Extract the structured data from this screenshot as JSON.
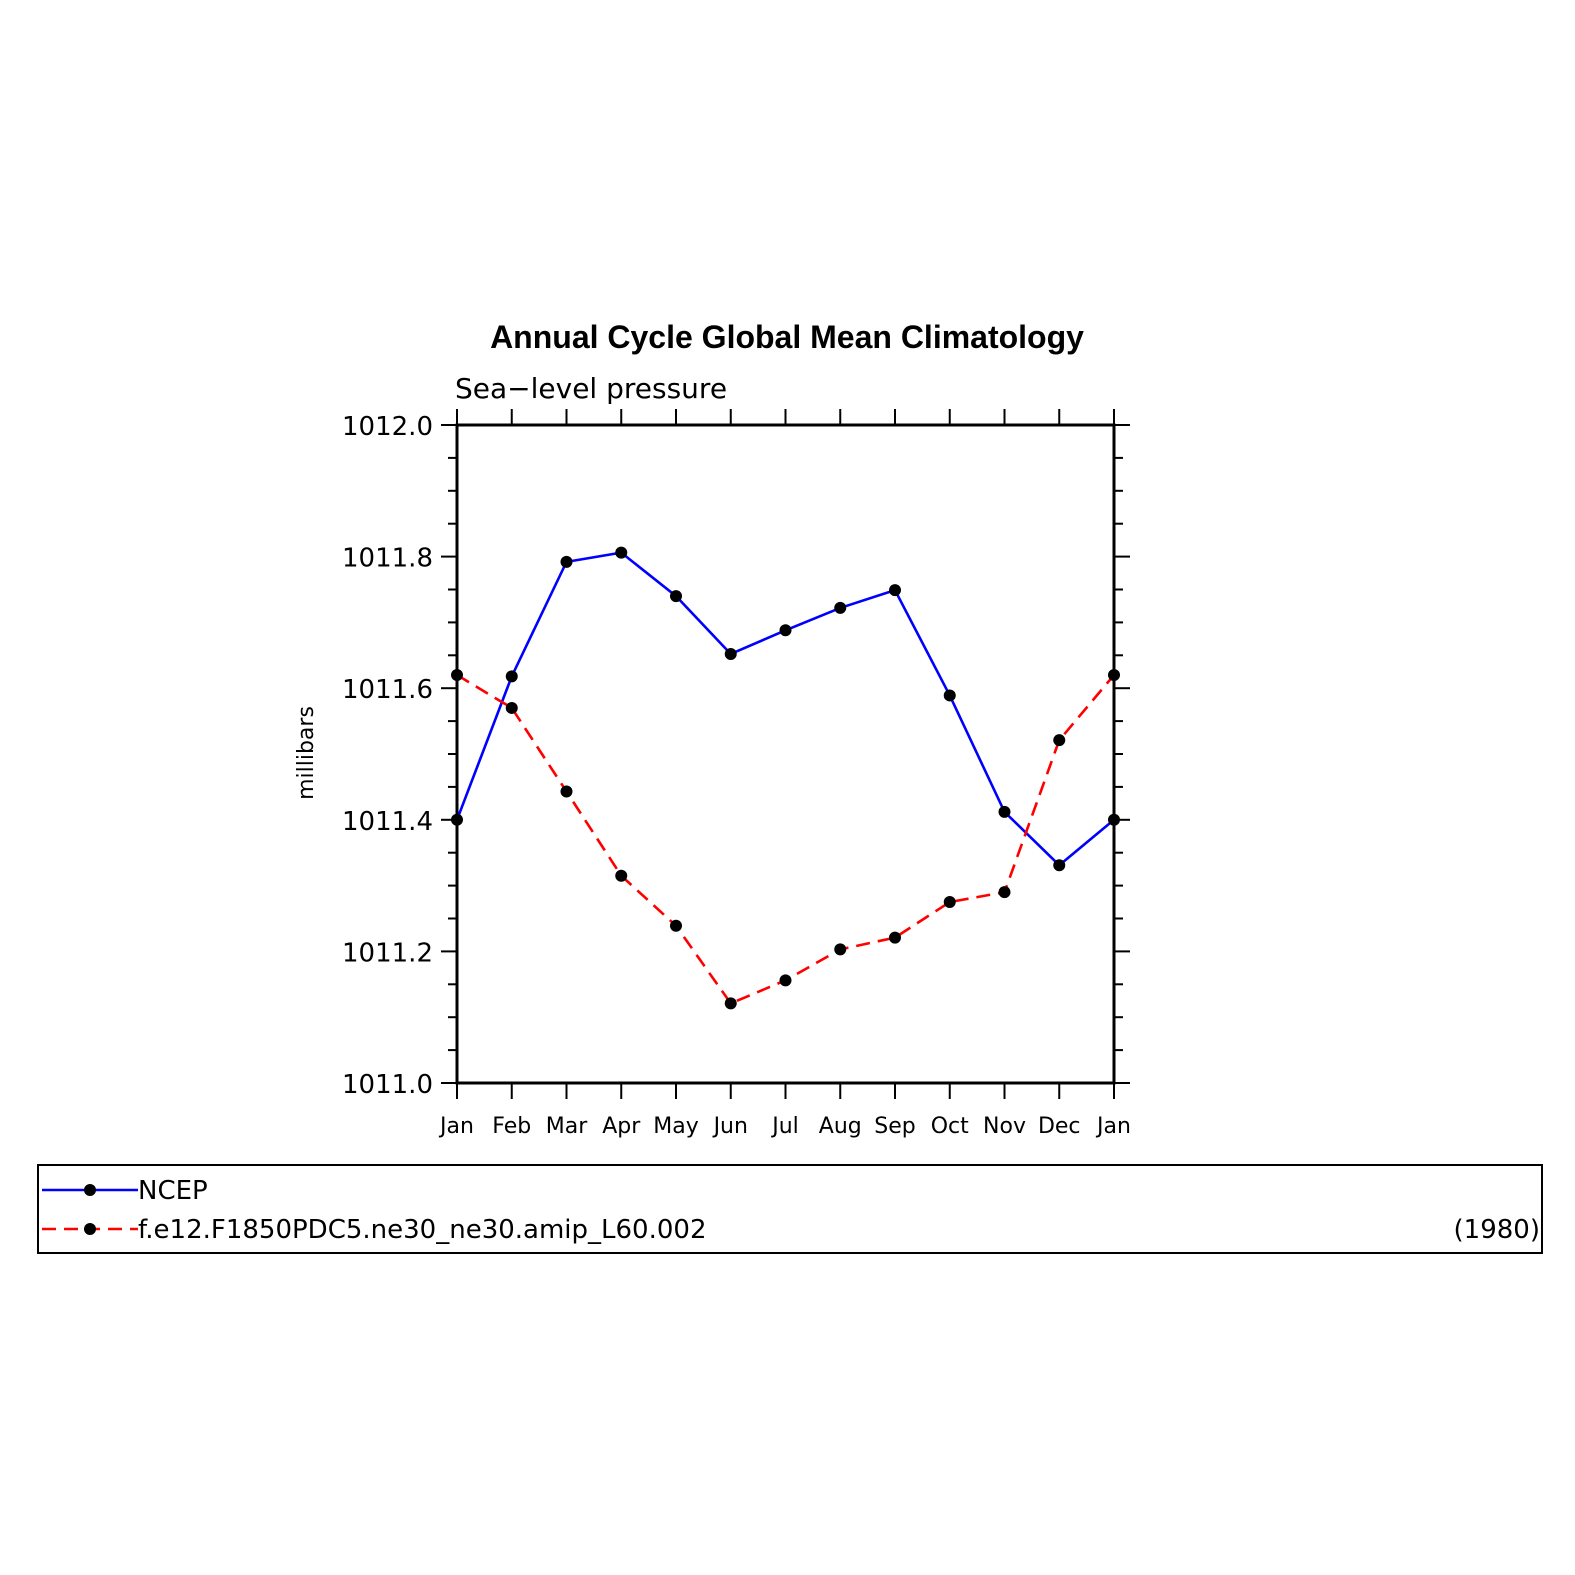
{
  "chart_data": {
    "type": "line",
    "title": "Annual Cycle Global Mean Climatology",
    "subtitle": "Sea−level pressure",
    "ylabel": "millibars",
    "xlabel": "",
    "categories": [
      "Jan",
      "Feb",
      "Mar",
      "Apr",
      "May",
      "Jun",
      "Jul",
      "Aug",
      "Sep",
      "Oct",
      "Nov",
      "Dec",
      "Jan"
    ],
    "ylim": [
      1011.0,
      1012.0
    ],
    "yticks": [
      "1011.0",
      "1011.2",
      "1011.4",
      "1011.6",
      "1011.8",
      "1012.0"
    ],
    "grid": false,
    "series": [
      {
        "name": "NCEP",
        "color": "#0000ff",
        "dash": "solid",
        "values": [
          1011.4,
          1011.618,
          1011.792,
          1011.806,
          1011.74,
          1011.652,
          1011.688,
          1011.722,
          1011.749,
          1011.589,
          1011.412,
          1011.331,
          1011.4
        ]
      },
      {
        "name": "f.e12.F1850PDC5.ne30_ne30.amip_L60.002",
        "color": "#ff0000",
        "dash": "dashed",
        "values": [
          1011.62,
          1011.57,
          1011.443,
          1011.315,
          1011.239,
          1011.121,
          1011.156,
          1011.203,
          1011.221,
          1011.275,
          1011.29,
          1011.521,
          1011.62
        ]
      }
    ],
    "legend": {
      "placement": "bottom",
      "note": "(1980)"
    }
  }
}
